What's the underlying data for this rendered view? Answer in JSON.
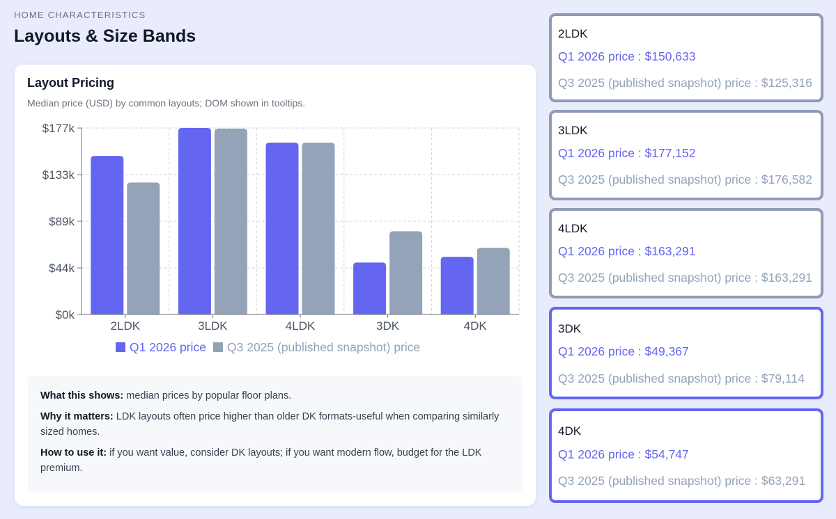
{
  "header": {
    "eyebrow": "HOME CHARACTERISTICS",
    "title": "Layouts & Size Bands"
  },
  "card": {
    "title": "Layout Pricing",
    "subtitle": "Median price (USD) by common layouts; DOM shown in tooltips."
  },
  "colors": {
    "q1": "#6466f1",
    "q3": "#94a3b8",
    "grid": "#d1d5db",
    "axis": "#6b7280",
    "tick_text": "#4b5563"
  },
  "chart_data": {
    "type": "bar",
    "categories": [
      "2LDK",
      "3LDK",
      "4LDK",
      "3DK",
      "4DK"
    ],
    "series": [
      {
        "name": "Q1 2026 price",
        "values": [
          150633,
          177152,
          163291,
          49367,
          54747
        ]
      },
      {
        "name": "Q3 2025 (published snapshot) price",
        "values": [
          125316,
          176582,
          163291,
          79114,
          63291
        ]
      }
    ],
    "ylim": [
      0,
      177152
    ],
    "yticks": [
      0,
      44288,
      88576,
      132864,
      177152
    ],
    "ytick_labels": [
      "$0k",
      "$44k",
      "$89k",
      "$133k",
      "$177k"
    ],
    "grid": true,
    "legend_position": "bottom"
  },
  "notes": [
    {
      "label": "What this shows:",
      "text": "median prices by popular floor plans."
    },
    {
      "label": "Why it matters:",
      "text": "LDK layouts often price higher than older DK formats-useful when comparing similarly sized homes."
    },
    {
      "label": "How to use it:",
      "text": "if you want value, consider DK layouts; if you want modern flow, budget for the LDK premium."
    }
  ],
  "side_cards": [
    {
      "name": "2LDK",
      "q1": "Q1 2026 price : $150,633",
      "q3": "Q3 2025 (published snapshot) price : $125,316",
      "active": false
    },
    {
      "name": "3LDK",
      "q1": "Q1 2026 price : $177,152",
      "q3": "Q3 2025 (published snapshot) price : $176,582",
      "active": false
    },
    {
      "name": "4LDK",
      "q1": "Q1 2026 price : $163,291",
      "q3": "Q3 2025 (published snapshot) price : $163,291",
      "active": false
    },
    {
      "name": "3DK",
      "q1": "Q1 2026 price : $49,367",
      "q3": "Q3 2025 (published snapshot) price : $79,114",
      "active": true
    },
    {
      "name": "4DK",
      "q1": "Q1 2026 price : $54,747",
      "q3": "Q3 2025 (published snapshot) price : $63,291",
      "active": true
    }
  ]
}
